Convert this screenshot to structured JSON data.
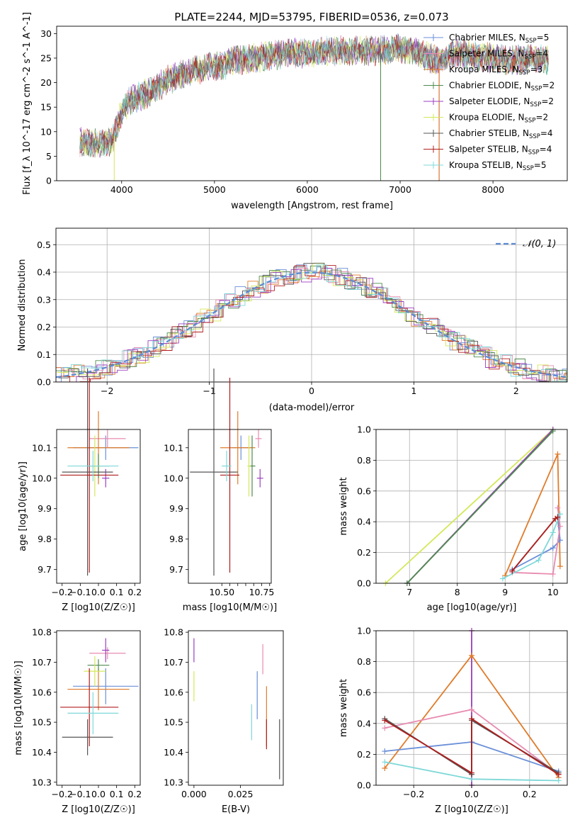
{
  "figure_title": "PLATE=2244, MJD=53795, FIBERID=0536, z=0.073",
  "series_colors": {
    "Chabrier MILES": "#6a8fd8",
    "Salpeter MILES": "#e88bb0",
    "Kroupa MILES": "#e07b2a",
    "Chabrier ELODIE": "#4f8a4f",
    "Salpeter ELODIE": "#9b3fc0",
    "Kroupa ELODIE": "#d4e85a",
    "Chabrier STELIB": "#555555",
    "Salpeter STELIB": "#b01e1e",
    "Kroupa STELIB": "#7fd8d8"
  },
  "chart_data": [
    {
      "type": "line",
      "title": "PLATE=2244, MJD=53795, FIBERID=0536, z=0.073",
      "xlabel": "wavelength [Angstrom, rest frame]",
      "ylabel": "Flux [f_λ 10^-17 erg cm^-2 s^-1 A^-1]",
      "xlim": [
        3300,
        8800
      ],
      "ylim": [
        0,
        31.5
      ],
      "xticks": [
        4000,
        5000,
        6000,
        7000,
        8000
      ],
      "yticks": [
        0,
        5,
        10,
        15,
        20,
        25,
        30
      ],
      "grid": false,
      "legend": "upper-right",
      "legend_entries": [
        {
          "name": "Chabrier MILES",
          "n": "5"
        },
        {
          "name": "Salpeter MILES",
          "n": "4"
        },
        {
          "name": "Kroupa MILES",
          "n": "3"
        },
        {
          "name": "Chabrier ELODIE",
          "n": "2"
        },
        {
          "name": "Salpeter ELODIE",
          "n": "2"
        },
        {
          "name": "Kroupa ELODIE",
          "n": "2"
        },
        {
          "name": "Chabrier STELIB",
          "n": "4"
        },
        {
          "name": "Salpeter STELIB",
          "n": "4"
        },
        {
          "name": "Kroupa STELIB",
          "n": "5"
        }
      ],
      "continuum_x": [
        3550,
        3700,
        3900,
        4000,
        4100,
        4300,
        4500,
        4700,
        4900,
        5100,
        5200,
        5400,
        5600,
        5800,
        6000,
        6200,
        6400,
        6600,
        6800,
        7000,
        7200,
        7400,
        7600,
        7800,
        8000,
        8200,
        8400,
        8600
      ],
      "continuum_y": [
        8.0,
        7.5,
        8.0,
        14.0,
        16.5,
        18.0,
        20.5,
        22.0,
        23.0,
        23.5,
        24.5,
        25.0,
        25.5,
        26.0,
        26.0,
        26.5,
        26.5,
        26.5,
        26.5,
        27.0,
        26.0,
        24.5,
        26.0,
        25.5,
        25.0,
        24.5,
        25.0,
        24.5
      ]
    },
    {
      "type": "histogram",
      "xlabel": "(data-model)/error",
      "ylabel": "Normed distribution",
      "xlim": [
        -2.5,
        2.5
      ],
      "ylim": [
        0,
        0.56
      ],
      "xticks": [
        -2,
        -1,
        0,
        1,
        2
      ],
      "yticks": [
        0.0,
        0.1,
        0.2,
        0.3,
        0.4,
        0.5
      ],
      "grid": true,
      "legend": "upper-right",
      "legend_label": "𝒩(0, 1)",
      "bin_width": 0.1
    },
    {
      "type": "errorbar",
      "xlabel": "Z [log10(Z/Z☉)]",
      "ylabel": "age  [log10(age/yr)]",
      "xlim": [
        -0.23,
        0.23
      ],
      "ylim": [
        9.655,
        10.16
      ],
      "xticks": [
        -0.2,
        -0.1,
        0.0,
        0.1,
        0.2
      ],
      "yticks": [
        9.7,
        9.8,
        9.9,
        10.0,
        10.1
      ],
      "points": [
        {
          "series": "Chabrier MILES",
          "x": 0.04,
          "y": 10.1,
          "xerr": 0.18,
          "yerr": 0.04
        },
        {
          "series": "Salpeter MILES",
          "x": 0.05,
          "y": 10.13,
          "xerr": 0.1,
          "yerr": 0.03
        },
        {
          "series": "Kroupa MILES",
          "x": 0.0,
          "y": 10.1,
          "xerr": 0.17,
          "yerr": 0.12
        },
        {
          "series": "Chabrier ELODIE",
          "x": 0.0,
          "y": 10.04,
          "xerr": 0.06,
          "yerr": 0.04
        },
        {
          "series": "Salpeter ELODIE",
          "x": 0.04,
          "y": 10.0,
          "xerr": 0.02,
          "yerr": 0.03
        },
        {
          "series": "Kroupa ELODIE",
          "x": -0.02,
          "y": 10.04,
          "xerr": 0.04,
          "yerr": 0.1
        },
        {
          "series": "Chabrier STELIB",
          "x": -0.06,
          "y": 10.02,
          "xerr": 0.14,
          "yerr": 0.34
        },
        {
          "series": "Salpeter STELIB",
          "x": -0.05,
          "y": 10.01,
          "xerr": 0.16,
          "yerr": 0.32
        },
        {
          "series": "Kroupa STELIB",
          "x": -0.03,
          "y": 10.04,
          "xerr": 0.14,
          "yerr": 0.05
        }
      ]
    },
    {
      "type": "errorbar",
      "xlabel": "mass [log10(M/M☉)]",
      "xlim": [
        10.29,
        10.81
      ],
      "ylim": [
        9.655,
        10.16
      ],
      "xticks": [
        10.5,
        10.55,
        10.6,
        10.65,
        10.7,
        10.75,
        10.8
      ],
      "xticklabels": [
        "10.50",
        "",
        "",
        "",
        "",
        "10.75",
        ""
      ],
      "yticks": [
        9.7,
        9.8,
        9.9,
        10.0,
        10.1
      ],
      "points": [
        {
          "series": "Chabrier MILES",
          "x": 10.62,
          "y": 10.1,
          "xerr": 0.06,
          "yerr": 0.04
        },
        {
          "series": "Salpeter MILES",
          "x": 10.73,
          "y": 10.13,
          "xerr": 0.02,
          "yerr": 0.03
        },
        {
          "series": "Kroupa MILES",
          "x": 10.6,
          "y": 10.1,
          "xerr": 0.11,
          "yerr": 0.12
        },
        {
          "series": "Chabrier ELODIE",
          "x": 10.69,
          "y": 10.04,
          "xerr": 0.02,
          "yerr": 0.1
        },
        {
          "series": "Salpeter ELODIE",
          "x": 10.74,
          "y": 10.0,
          "xerr": 0.02,
          "yerr": 0.03
        },
        {
          "series": "Kroupa ELODIE",
          "x": 10.67,
          "y": 10.04,
          "xerr": 0.01,
          "yerr": 0.1
        },
        {
          "series": "Chabrier STELIB",
          "x": 10.45,
          "y": 10.02,
          "xerr": 0.15,
          "yerr": 0.34
        },
        {
          "series": "Salpeter STELIB",
          "x": 10.55,
          "y": 10.01,
          "xerr": 0.06,
          "yerr": 0.32
        },
        {
          "series": "Kroupa STELIB",
          "x": 10.53,
          "y": 10.04,
          "xerr": 0.03,
          "yerr": 0.05
        }
      ]
    },
    {
      "type": "line",
      "xlabel": "age  [log10(age/yr)]",
      "ylabel": "mass weight",
      "xlim": [
        6.3,
        10.3
      ],
      "ylim": [
        0,
        1.0
      ],
      "xticks": [
        7,
        8,
        9,
        10
      ],
      "yticks": [
        0.0,
        0.2,
        0.4,
        0.6,
        0.8,
        1.0
      ],
      "grid": true,
      "series": [
        {
          "name": "Kroupa ELODIE",
          "x": [
            6.5,
            10.0
          ],
          "y": [
            0.0,
            1.0
          ]
        },
        {
          "name": "Salpeter ELODIE",
          "x": [
            6.95,
            10.0
          ],
          "y": [
            0.0,
            1.0
          ]
        },
        {
          "name": "Chabrier ELODIE",
          "x": [
            6.95,
            10.0
          ],
          "y": [
            0.0,
            0.99
          ]
        },
        {
          "name": "Kroupa MILES",
          "x": [
            9.0,
            10.1,
            10.15
          ],
          "y": [
            0.05,
            0.84,
            0.11
          ]
        },
        {
          "name": "Chabrier MILES",
          "x": [
            9.15,
            10.0,
            10.15,
            10.1
          ],
          "y": [
            0.09,
            0.23,
            0.28,
            0.42
          ]
        },
        {
          "name": "Salpeter MILES",
          "x": [
            9.15,
            10.0,
            10.15,
            10.1
          ],
          "y": [
            0.07,
            0.06,
            0.37,
            0.49
          ]
        },
        {
          "name": "Kroupa STELIB",
          "x": [
            8.95,
            9.7,
            10.0,
            10.15
          ],
          "y": [
            0.03,
            0.15,
            0.33,
            0.45
          ]
        },
        {
          "name": "Chabrier STELIB",
          "x": [
            9.15,
            10.05,
            10.1
          ],
          "y": [
            0.08,
            0.42,
            0.43
          ]
        },
        {
          "name": "Salpeter STELIB",
          "x": [
            9.15,
            10.05,
            10.1
          ],
          "y": [
            0.08,
            0.42,
            0.43
          ]
        }
      ]
    },
    {
      "type": "errorbar",
      "xlabel": "Z [log10(Z/Z☉)]",
      "ylabel": "mass [log10(M/M☉)]",
      "xlim": [
        -0.23,
        0.23
      ],
      "ylim": [
        10.29,
        10.805
      ],
      "xticks": [
        -0.2,
        -0.1,
        0.0,
        0.1,
        0.2
      ],
      "yticks": [
        10.3,
        10.4,
        10.5,
        10.6,
        10.7,
        10.8
      ],
      "points": [
        {
          "series": "Chabrier MILES",
          "x": 0.04,
          "y": 10.62,
          "xerr": 0.18,
          "yerr": 0.06
        },
        {
          "series": "Salpeter MILES",
          "x": 0.05,
          "y": 10.73,
          "xerr": 0.1,
          "yerr": 0.02
        },
        {
          "series": "Kroupa MILES",
          "x": 0.0,
          "y": 10.61,
          "xerr": 0.17,
          "yerr": 0.07
        },
        {
          "series": "Chabrier ELODIE",
          "x": 0.0,
          "y": 10.69,
          "xerr": 0.06,
          "yerr": 0.02
        },
        {
          "series": "Salpeter ELODIE",
          "x": 0.04,
          "y": 10.74,
          "xerr": 0.02,
          "yerr": 0.04
        },
        {
          "series": "Kroupa ELODIE",
          "x": -0.02,
          "y": 10.67,
          "xerr": 0.06,
          "yerr": 0.05
        },
        {
          "series": "Chabrier STELIB",
          "x": -0.06,
          "y": 10.45,
          "xerr": 0.14,
          "yerr": 0.06
        },
        {
          "series": "Salpeter STELIB",
          "x": -0.05,
          "y": 10.55,
          "xerr": 0.16,
          "yerr": 0.13
        },
        {
          "series": "Kroupa STELIB",
          "x": -0.03,
          "y": 10.53,
          "xerr": 0.14,
          "yerr": 0.07
        }
      ]
    },
    {
      "type": "errorbar",
      "xlabel": "E(B-V)",
      "xlim": [
        -0.003,
        0.048
      ],
      "ylim": [
        10.29,
        10.805
      ],
      "xticks": [
        0.0,
        0.025
      ],
      "xticklabels": [
        "0.000",
        "0.025"
      ],
      "yticks": [
        10.3,
        10.4,
        10.5,
        10.6,
        10.7,
        10.8
      ],
      "points": [
        {
          "series": "Salpeter ELODIE",
          "x": 0.0,
          "y": 10.74,
          "xerr": 0.0,
          "yerr": 0.04
        },
        {
          "series": "Kroupa ELODIE",
          "x": 0.0,
          "y": 10.62,
          "xerr": 0.0,
          "yerr": 0.05
        },
        {
          "series": "Kroupa STELIB",
          "x": 0.031,
          "y": 10.5,
          "xerr": 0.0,
          "yerr": 0.06
        },
        {
          "series": "Chabrier MILES",
          "x": 0.034,
          "y": 10.59,
          "xerr": 0.0,
          "yerr": 0.08
        },
        {
          "series": "Salpeter MILES",
          "x": 0.037,
          "y": 10.71,
          "xerr": 0.0,
          "yerr": 0.05
        },
        {
          "series": "Kroupa MILES",
          "x": 0.039,
          "y": 10.52,
          "xerr": 0.0,
          "yerr": 0.1
        },
        {
          "series": "Salpeter STELIB",
          "x": 0.039,
          "y": 10.46,
          "xerr": 0.0,
          "yerr": 0.05
        },
        {
          "series": "Chabrier STELIB",
          "x": 0.046,
          "y": 10.41,
          "xerr": 0.0,
          "yerr": 0.1
        }
      ]
    },
    {
      "type": "line",
      "xlabel": "Z [log10(Z/Z☉)]",
      "ylabel": "mass weight",
      "xlim": [
        -0.33,
        0.33
      ],
      "ylim": [
        0,
        1.0
      ],
      "xticks": [
        -0.2,
        0.0,
        0.2
      ],
      "yticks": [
        0.0,
        0.2,
        0.4,
        0.6,
        0.8,
        1.0
      ],
      "grid": true,
      "series": [
        {
          "name": "Kroupa ELODIE",
          "x": [
            0.0,
            0.0
          ],
          "y": [
            0.0,
            1.0
          ]
        },
        {
          "name": "Salpeter ELODIE",
          "x": [
            0.0,
            0.0
          ],
          "y": [
            0.0,
            1.0
          ]
        },
        {
          "name": "Kroupa MILES",
          "x": [
            -0.3,
            0.0,
            0.3
          ],
          "y": [
            0.11,
            0.84,
            0.05
          ]
        },
        {
          "name": "Salpeter MILES",
          "x": [
            -0.3,
            0.0,
            0.3
          ],
          "y": [
            0.37,
            0.49,
            0.07
          ]
        },
        {
          "name": "Chabrier MILES",
          "x": [
            -0.3,
            0.0,
            0.3
          ],
          "y": [
            0.22,
            0.28,
            0.09
          ]
        },
        {
          "name": "Kroupa STELIB",
          "x": [
            -0.3,
            0.0,
            0.3
          ],
          "y": [
            0.15,
            0.04,
            0.03
          ]
        },
        {
          "name": "Chabrier STELIB",
          "x": [
            -0.3,
            0.0,
            0.0,
            0.3
          ],
          "y": [
            0.43,
            0.07,
            0.42,
            0.08
          ]
        },
        {
          "name": "Salpeter STELIB",
          "x": [
            -0.3,
            0.0,
            0.0,
            0.3
          ],
          "y": [
            0.42,
            0.08,
            0.43,
            0.07
          ]
        }
      ]
    }
  ]
}
